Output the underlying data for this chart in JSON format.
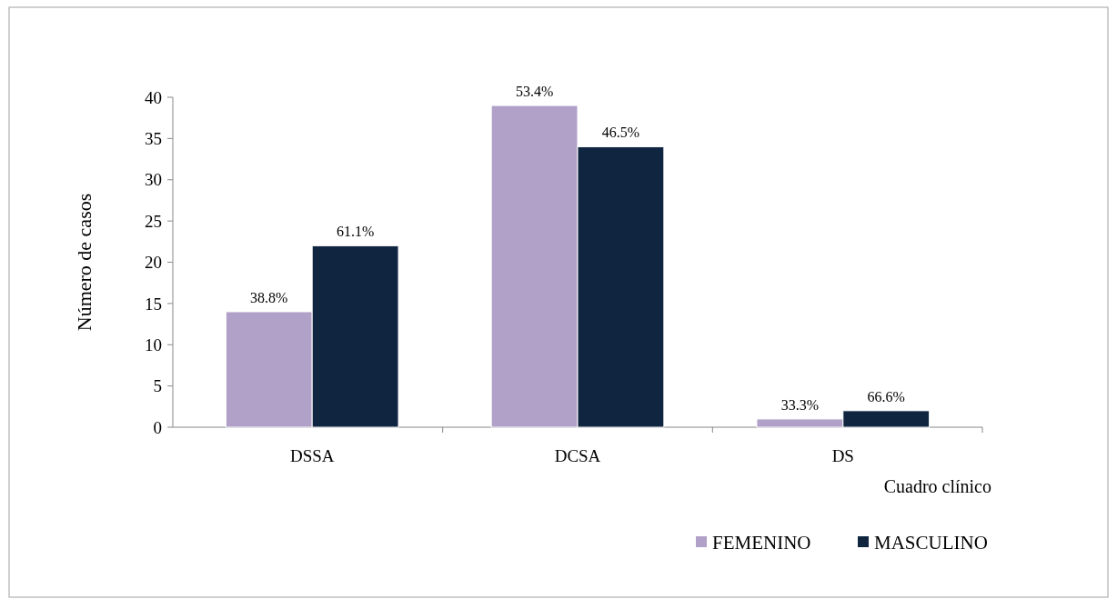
{
  "chart_data": {
    "type": "bar",
    "categories": [
      "DSSA",
      "DCSA",
      "DS"
    ],
    "xlabel": "Cuadro clínico",
    "ylabel": "Número de casos",
    "ylim": [
      0,
      40
    ],
    "yticks": [
      0,
      5,
      10,
      15,
      20,
      25,
      30,
      35,
      40
    ],
    "legend": "bottom",
    "grid": false,
    "series": [
      {
        "name": "FEMENINO",
        "color": "#b1a0c7",
        "values": [
          14,
          39,
          1
        ]
      },
      {
        "name": "MASCULINO",
        "color": "#10253f",
        "values": [
          22,
          34,
          2
        ]
      }
    ],
    "annotations": [
      {
        "text": "38.8%",
        "x": "DSSA",
        "y": 14
      },
      {
        "text": "61.1%",
        "x": "DSSA",
        "y": 22
      },
      {
        "text": "53.4%",
        "x": "DCSA",
        "y": 39
      },
      {
        "text": "46.5%",
        "x": "DCSA",
        "y": 34
      },
      {
        "text": "33.3%",
        "x": "DS",
        "y": 1
      },
      {
        "text": "66.6%",
        "x": "DS",
        "y": 2
      }
    ]
  }
}
